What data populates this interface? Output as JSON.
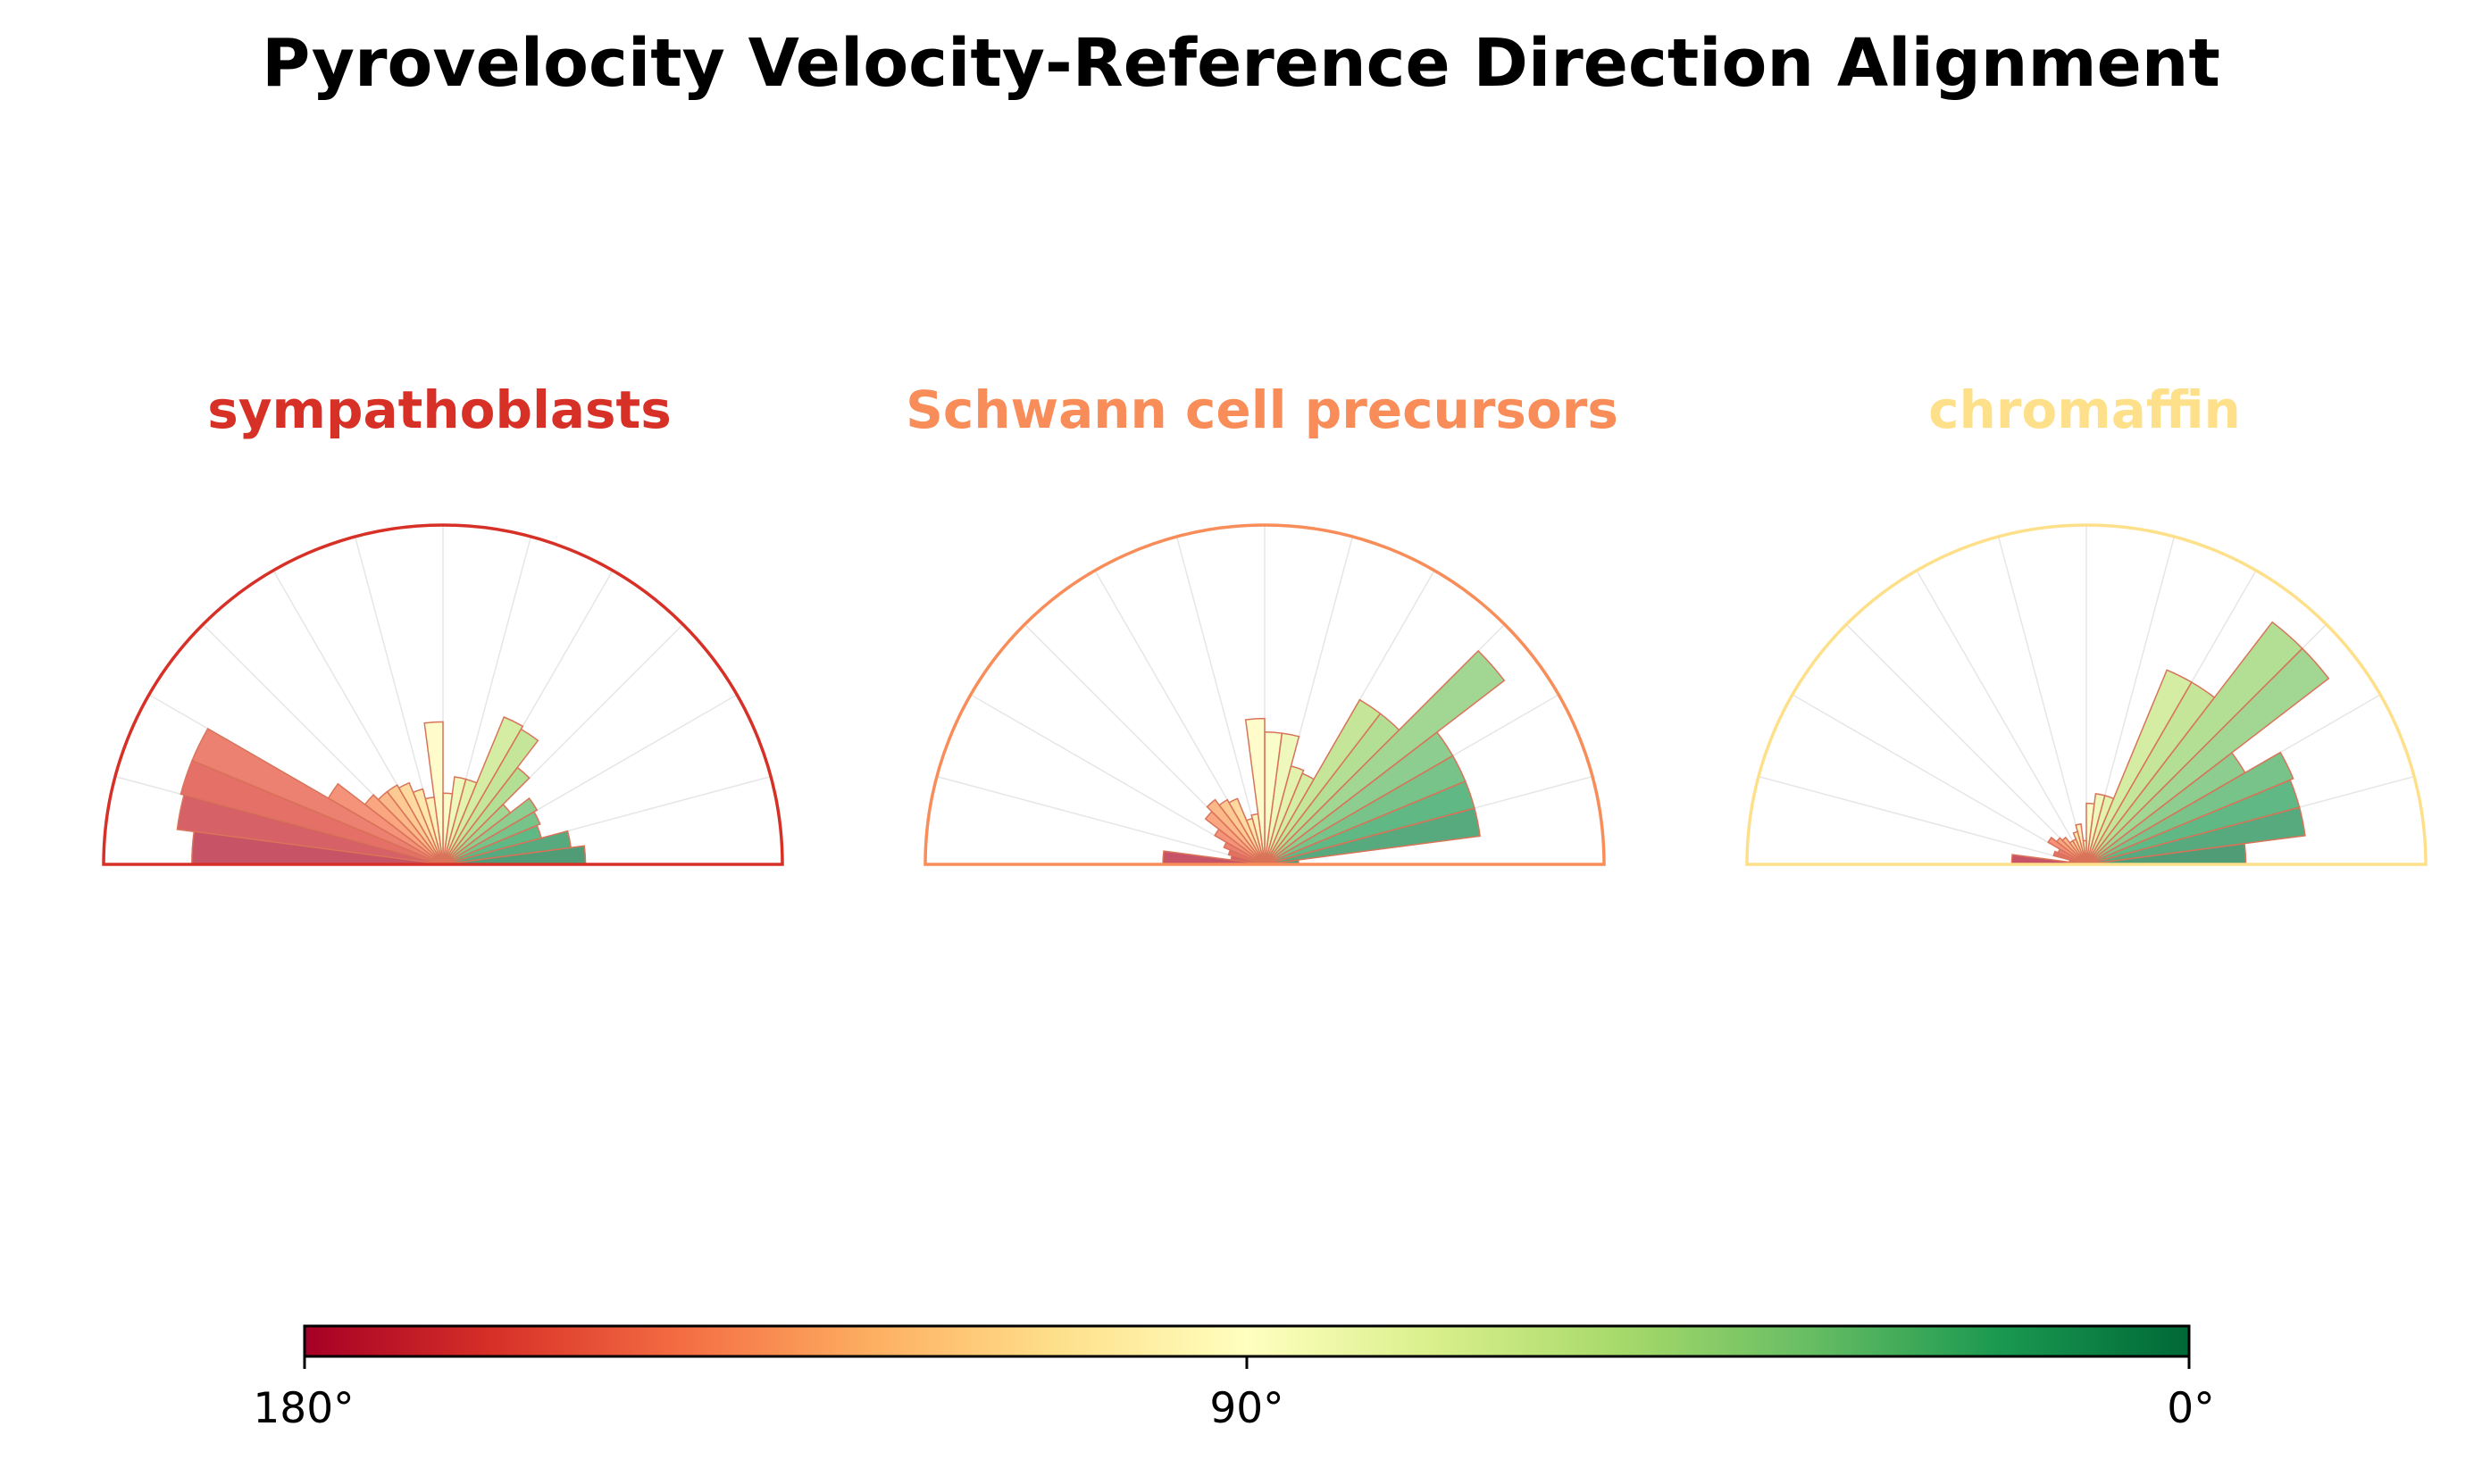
{
  "title": "Pyrovelocity Velocity-Reference Direction Alignment",
  "chart_data": [
    {
      "type": "polar-histogram",
      "title": "sympathoblasts",
      "title_color": "#d73027",
      "angle_unit": "degrees",
      "angle_range": [
        0,
        180
      ],
      "bin_width_deg": 7.5,
      "bins": [
        {
          "angle": 3.75,
          "r": 0.42
        },
        {
          "angle": 11.25,
          "r": 0.38
        },
        {
          "angle": 18.75,
          "r": 0.3
        },
        {
          "angle": 26.25,
          "r": 0.31
        },
        {
          "angle": 33.75,
          "r": 0.32
        },
        {
          "angle": 41.25,
          "r": 0.25
        },
        {
          "angle": 48.75,
          "r": 0.36
        },
        {
          "angle": 56.25,
          "r": 0.46
        },
        {
          "angle": 63.75,
          "r": 0.47
        },
        {
          "angle": 71.25,
          "r": 0.26
        },
        {
          "angle": 78.75,
          "r": 0.26
        },
        {
          "angle": 86.25,
          "r": 0.21
        },
        {
          "angle": 93.75,
          "r": 0.42
        },
        {
          "angle": 101.25,
          "r": 0.2
        },
        {
          "angle": 108.75,
          "r": 0.23
        },
        {
          "angle": 116.25,
          "r": 0.26
        },
        {
          "angle": 123.75,
          "r": 0.27
        },
        {
          "angle": 131.25,
          "r": 0.27
        },
        {
          "angle": 138.75,
          "r": 0.29
        },
        {
          "angle": 146.25,
          "r": 0.39
        },
        {
          "angle": 153.75,
          "r": 0.8
        },
        {
          "angle": 161.25,
          "r": 0.8
        },
        {
          "angle": 168.75,
          "r": 0.79
        },
        {
          "angle": 176.25,
          "r": 0.74
        }
      ]
    },
    {
      "type": "polar-histogram",
      "title": "Schwann cell precursors",
      "title_color": "#f88d59",
      "angle_unit": "degrees",
      "angle_range": [
        0,
        180
      ],
      "bin_width_deg": 7.5,
      "bins": [
        {
          "angle": 3.75,
          "r": 0.1
        },
        {
          "angle": 11.25,
          "r": 0.64
        },
        {
          "angle": 18.75,
          "r": 0.64
        },
        {
          "angle": 26.25,
          "r": 0.64
        },
        {
          "angle": 33.75,
          "r": 0.64
        },
        {
          "angle": 41.25,
          "r": 0.89
        },
        {
          "angle": 48.75,
          "r": 0.56
        },
        {
          "angle": 56.25,
          "r": 0.56
        },
        {
          "angle": 63.75,
          "r": 0.29
        },
        {
          "angle": 71.25,
          "r": 0.3
        },
        {
          "angle": 78.75,
          "r": 0.39
        },
        {
          "angle": 86.25,
          "r": 0.39
        },
        {
          "angle": 93.75,
          "r": 0.43
        },
        {
          "angle": 101.25,
          "r": 0.15
        },
        {
          "angle": 108.75,
          "r": 0.14
        },
        {
          "angle": 116.25,
          "r": 0.21
        },
        {
          "angle": 123.75,
          "r": 0.22
        },
        {
          "angle": 131.25,
          "r": 0.24
        },
        {
          "angle": 138.75,
          "r": 0.22
        },
        {
          "angle": 146.25,
          "r": 0.17
        },
        {
          "angle": 153.75,
          "r": 0.13
        },
        {
          "angle": 161.25,
          "r": 0.11
        },
        {
          "angle": 168.75,
          "r": 0.1
        },
        {
          "angle": 176.25,
          "r": 0.3
        }
      ]
    },
    {
      "type": "polar-histogram",
      "title": "chromaffin",
      "title_color": "#fee08b",
      "angle_unit": "degrees",
      "angle_range": [
        0,
        180
      ],
      "bin_width_deg": 7.5,
      "bins": [
        {
          "angle": 3.75,
          "r": 0.47
        },
        {
          "angle": 11.25,
          "r": 0.65
        },
        {
          "angle": 18.75,
          "r": 0.65
        },
        {
          "angle": 26.25,
          "r": 0.66
        },
        {
          "angle": 33.75,
          "r": 0.54
        },
        {
          "angle": 41.25,
          "r": 0.9
        },
        {
          "angle": 48.75,
          "r": 0.9
        },
        {
          "angle": 56.25,
          "r": 0.62
        },
        {
          "angle": 63.75,
          "r": 0.62
        },
        {
          "angle": 71.25,
          "r": 0.21
        },
        {
          "angle": 78.75,
          "r": 0.21
        },
        {
          "angle": 86.25,
          "r": 0.18
        },
        {
          "angle": 93.75,
          "r": 0.07
        },
        {
          "angle": 101.25,
          "r": 0.12
        },
        {
          "angle": 108.75,
          "r": 0.1
        },
        {
          "angle": 116.25,
          "r": 0.08
        },
        {
          "angle": 123.75,
          "r": 0.08
        },
        {
          "angle": 131.25,
          "r": 0.1
        },
        {
          "angle": 138.75,
          "r": 0.11
        },
        {
          "angle": 146.25,
          "r": 0.13
        },
        {
          "angle": 153.75,
          "r": 0.09
        },
        {
          "angle": 161.25,
          "r": 0.1
        },
        {
          "angle": 168.75,
          "r": 0.05
        },
        {
          "angle": 176.25,
          "r": 0.22
        }
      ]
    }
  ],
  "colorbar": {
    "colormap": "RdYlGn",
    "range": [
      180,
      0
    ],
    "ticks": [
      {
        "value": 180,
        "label": "180°"
      },
      {
        "value": 90,
        "label": "90°"
      },
      {
        "value": 0,
        "label": "0°"
      }
    ]
  },
  "colors": {
    "grid": "#e6e6e6",
    "bar_edge": "#d9745a",
    "text": "#000000"
  }
}
